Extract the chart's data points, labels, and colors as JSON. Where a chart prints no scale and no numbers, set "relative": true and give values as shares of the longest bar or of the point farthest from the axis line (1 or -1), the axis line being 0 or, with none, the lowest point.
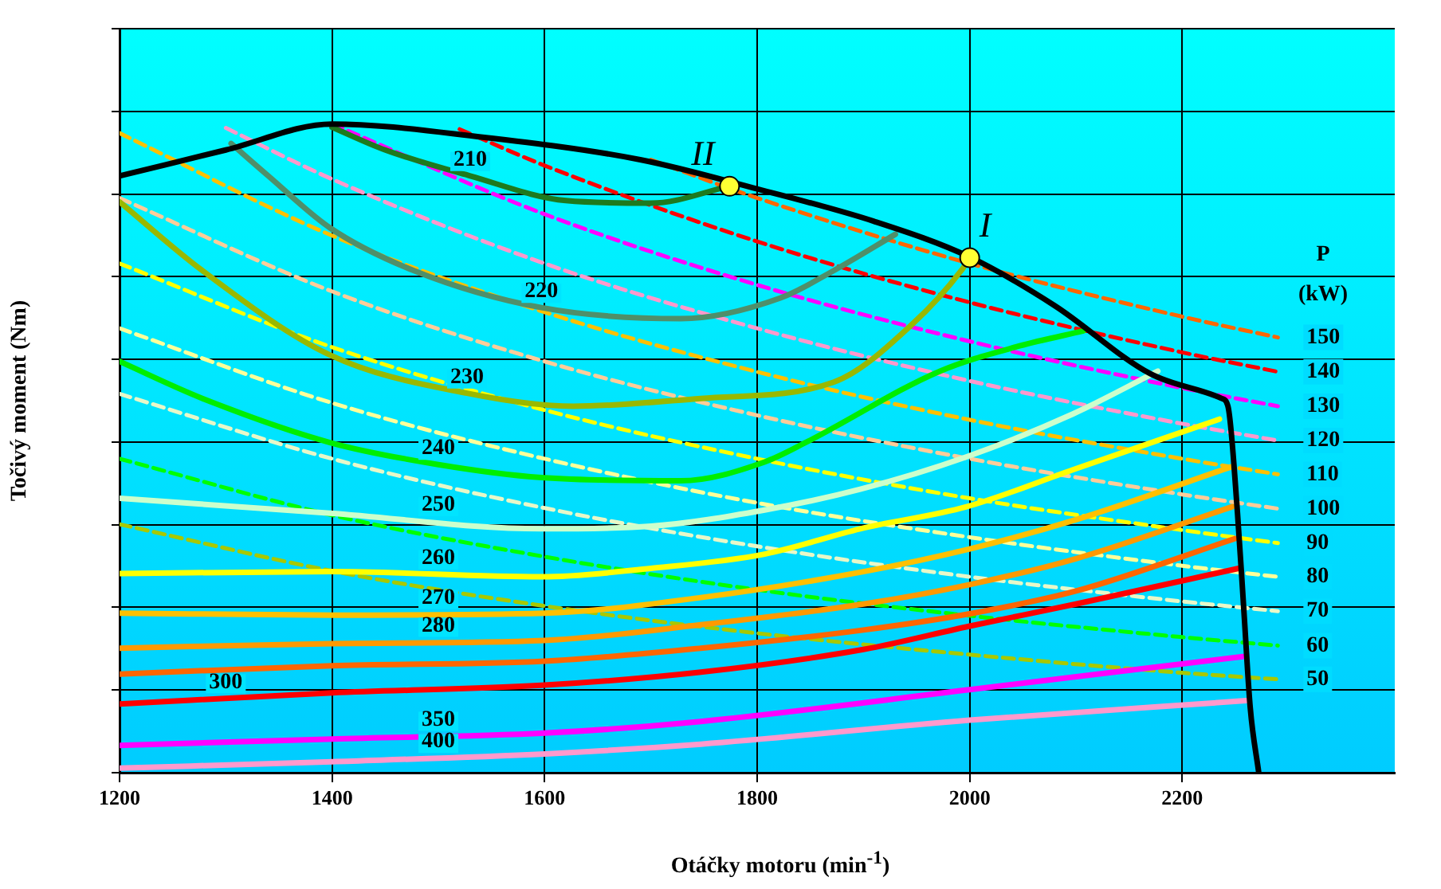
{
  "chart_data": {
    "type": "line",
    "relative": true,
    "xlabel": "Otáčky motoru  (min$^{-1}$)",
    "ylabel": "Točivý moment (Nm)",
    "xlim": [
      1200,
      2400
    ],
    "xticks": [
      1200,
      1400,
      1600,
      1800,
      2000,
      2200
    ],
    "grid": true,
    "legend": false,
    "marker": "none",
    "line_style": "solid",
    "series": [
      {
        "line_style": "dashed",
        "color": "#a8c800",
        "x": [
          1200,
          1400,
          1600,
          1800,
          2000,
          2200,
          2290
        ],
        "values": [
          0.383,
          0.311,
          0.257,
          0.215,
          0.182,
          0.154,
          0.144
        ]
      },
      {
        "line_style": "dashed",
        "color": "#00ff00",
        "x": [
          1200,
          1400,
          1600,
          1800,
          2000,
          2200,
          2290
        ],
        "values": [
          0.484,
          0.397,
          0.333,
          0.282,
          0.242,
          0.209,
          0.196
        ]
      },
      {
        "line_style": "dashed",
        "color": "#e8f8c8",
        "x": [
          1200,
          1400,
          1600,
          1800,
          2000,
          2200,
          2290
        ],
        "values": [
          0.584,
          0.484,
          0.408,
          0.349,
          0.302,
          0.264,
          0.249
        ]
      },
      {
        "line_style": "dashed",
        "color": "#ffff99",
        "x": [
          1200,
          1400,
          1600,
          1800,
          2000,
          2200,
          2290
        ],
        "values": [
          0.685,
          0.57,
          0.484,
          0.416,
          0.363,
          0.319,
          0.302
        ]
      },
      {
        "line_style": "dashed",
        "color": "#ffff00",
        "x": [
          1200,
          1400,
          1600,
          1800,
          2000,
          2200,
          2290
        ],
        "values": [
          0.785,
          0.656,
          0.559,
          0.484,
          0.423,
          0.374,
          0.354
        ]
      },
      {
        "line_style": "dashed",
        "color": "#ffcc99",
        "x": [
          1200,
          1400,
          1600,
          1800,
          2000,
          2200,
          2290
        ],
        "values": [
          0.886,
          0.742,
          0.634,
          0.551,
          0.484,
          0.429,
          0.407
        ]
      },
      {
        "line_style": "dashed",
        "color": "#ffc000",
        "x": [
          1200,
          1400,
          1600,
          1800,
          2000,
          2200,
          2290
        ],
        "values": [
          0.986,
          0.828,
          0.71,
          0.618,
          0.544,
          0.484,
          0.46
        ]
      },
      {
        "line_style": "dashed",
        "color": "#ff99cc",
        "x": [
          1300,
          1400,
          1600,
          1800,
          2000,
          2200,
          2290
        ],
        "values": [
          0.994,
          0.915,
          0.785,
          0.685,
          0.604,
          0.538,
          0.512
        ]
      },
      {
        "line_style": "dashed",
        "color": "#ff00ff",
        "x": [
          1400,
          1600,
          1800,
          2000,
          2200,
          2290
        ],
        "values": [
          1.0,
          0.861,
          0.752,
          0.665,
          0.593,
          0.565
        ]
      },
      {
        "line_style": "dashed",
        "color": "#ff0000",
        "x": [
          1520,
          1600,
          1800,
          2000,
          2200,
          2290
        ],
        "values": [
          0.992,
          0.936,
          0.819,
          0.725,
          0.648,
          0.618
        ]
      },
      {
        "line_style": "dashed",
        "color": "#ff6600",
        "x": [
          1700,
          1800,
          2000,
          2200,
          2290
        ],
        "values": [
          0.945,
          0.886,
          0.785,
          0.703,
          0.671
        ]
      },
      {
        "color": "#1e7a1e",
        "x": [
          1400,
          1450,
          1530,
          1620,
          1700,
          1774
        ],
        "values": [
          0.995,
          0.96,
          0.92,
          0.882,
          0.878,
          0.904
        ]
      },
      {
        "color": "#4f8f6a",
        "x": [
          1305,
          1340,
          1398,
          1477,
          1597,
          1728,
          1822,
          1872,
          1930
        ],
        "values": [
          0.97,
          0.92,
          0.84,
          0.774,
          0.717,
          0.7,
          0.732,
          0.774,
          0.83
        ]
      },
      {
        "color": "#99b800",
        "x": [
          1200,
          1278,
          1398,
          1527,
          1627,
          1747,
          1872,
          1947,
          1992,
          2000
        ],
        "values": [
          0.88,
          0.774,
          0.644,
          0.585,
          0.565,
          0.577,
          0.602,
          0.693,
          0.774,
          0.794
        ]
      },
      {
        "color": "#00ee00",
        "x": [
          1200,
          1278,
          1398,
          1500,
          1597,
          1728,
          1807,
          1848,
          1972,
          2047,
          2107
        ],
        "values": [
          0.634,
          0.577,
          0.509,
          0.475,
          0.455,
          0.45,
          0.479,
          0.511,
          0.619,
          0.658,
          0.681
        ]
      },
      {
        "color": "#ccffcc",
        "x": [
          1200,
          1398,
          1597,
          1700,
          1807,
          1897,
          1997,
          2097,
          2177
        ],
        "values": [
          0.423,
          0.4,
          0.376,
          0.38,
          0.405,
          0.437,
          0.487,
          0.553,
          0.619
        ]
      },
      {
        "color": "#ffff00",
        "x": [
          1200,
          1398,
          1597,
          1700,
          1807,
          1897,
          1997,
          2097,
          2235
        ],
        "values": [
          0.307,
          0.31,
          0.302,
          0.315,
          0.337,
          0.376,
          0.41,
          0.467,
          0.545
        ]
      },
      {
        "color": "#ffc000",
        "x": [
          1200,
          1400,
          1600,
          1747,
          1900,
          2000,
          2100,
          2247
        ],
        "values": [
          0.246,
          0.243,
          0.246,
          0.27,
          0.31,
          0.345,
          0.39,
          0.472
        ]
      },
      {
        "color": "#ff9900",
        "x": [
          1200,
          1400,
          1600,
          1747,
          1900,
          2000,
          2100,
          2247
        ],
        "values": [
          0.192,
          0.199,
          0.204,
          0.228,
          0.26,
          0.29,
          0.33,
          0.41
        ]
      },
      {
        "color": "#ff6600",
        "x": [
          1200,
          1400,
          1600,
          1747,
          1900,
          2000,
          2100,
          2250
        ],
        "values": [
          0.152,
          0.165,
          0.172,
          0.192,
          0.22,
          0.245,
          0.28,
          0.361
        ]
      },
      {
        "color": "#ff0000",
        "x": [
          1200,
          1400,
          1600,
          1747,
          1900,
          2000,
          2100,
          2253
        ],
        "values": [
          0.106,
          0.123,
          0.135,
          0.155,
          0.19,
          0.226,
          0.26,
          0.315
        ]
      },
      {
        "color": "#ff00ff",
        "x": [
          1200,
          1400,
          1600,
          1747,
          2000,
          2257
        ],
        "values": [
          0.042,
          0.052,
          0.061,
          0.079,
          0.128,
          0.179
        ]
      },
      {
        "color": "#ff99cc",
        "x": [
          1200,
          1400,
          1600,
          1747,
          2000,
          2260
        ],
        "values": [
          0.007,
          0.017,
          0.029,
          0.044,
          0.081,
          0.111
        ]
      },
      {
        "color": "#000000",
        "x": [
          1200,
          1300,
          1400,
          1540,
          1690,
          1800,
          1910,
          2000,
          2080,
          2170,
          2237,
          2243,
          2252,
          2258,
          2264,
          2272
        ],
        "values": [
          0.92,
          0.96,
          1.0,
          0.98,
          0.945,
          0.9,
          0.85,
          0.795,
          0.72,
          0.615,
          0.577,
          0.565,
          0.4,
          0.25,
          0.1,
          0
        ]
      },
      {
        "type": "scatter",
        "marker": "circle",
        "color": "#ffff33",
        "x": [
          1774,
          2000
        ],
        "values": [
          0.904,
          0.794
        ]
      }
    ],
    "annotations": [
      {
        "text": "II",
        "x": 1774,
        "y": 0.904
      },
      {
        "text": "I",
        "x": 2000,
        "y": 0.794
      },
      {
        "text": "210",
        "x": 1530,
        "y": 0.92
      },
      {
        "text": "220",
        "x": 1597,
        "y": 0.717
      },
      {
        "text": "230",
        "x": 1527,
        "y": 0.585
      },
      {
        "text": "240",
        "x": 1500,
        "y": 0.475
      },
      {
        "text": "250",
        "x": 1500,
        "y": 0.388
      },
      {
        "text": "260",
        "x": 1500,
        "y": 0.306
      },
      {
        "text": "270",
        "x": 1500,
        "y": 0.245
      },
      {
        "text": "280",
        "x": 1500,
        "y": 0.202
      },
      {
        "text": "300",
        "x": 1300,
        "y": 0.115
      },
      {
        "text": "350",
        "x": 1500,
        "y": 0.057
      },
      {
        "text": "400",
        "x": 1500,
        "y": 0.023
      },
      "P",
      "(kW)",
      {
        "text": "150",
        "x": 2290,
        "y": 0.671
      },
      {
        "text": "140",
        "x": 2290,
        "y": 0.618
      },
      {
        "text": "130",
        "x": 2290,
        "y": 0.565
      },
      {
        "text": "120",
        "x": 2290,
        "y": 0.512
      },
      {
        "text": "110",
        "x": 2290,
        "y": 0.46
      },
      {
        "text": "100",
        "x": 2290,
        "y": 0.407
      },
      {
        "text": "90",
        "x": 2290,
        "y": 0.354
      },
      {
        "text": "80",
        "x": 2290,
        "y": 0.302
      },
      {
        "text": "70",
        "x": 2290,
        "y": 0.249
      },
      {
        "text": "60",
        "x": 2290,
        "y": 0.196
      },
      {
        "text": "50",
        "x": 2290,
        "y": 0.144
      }
    ]
  }
}
